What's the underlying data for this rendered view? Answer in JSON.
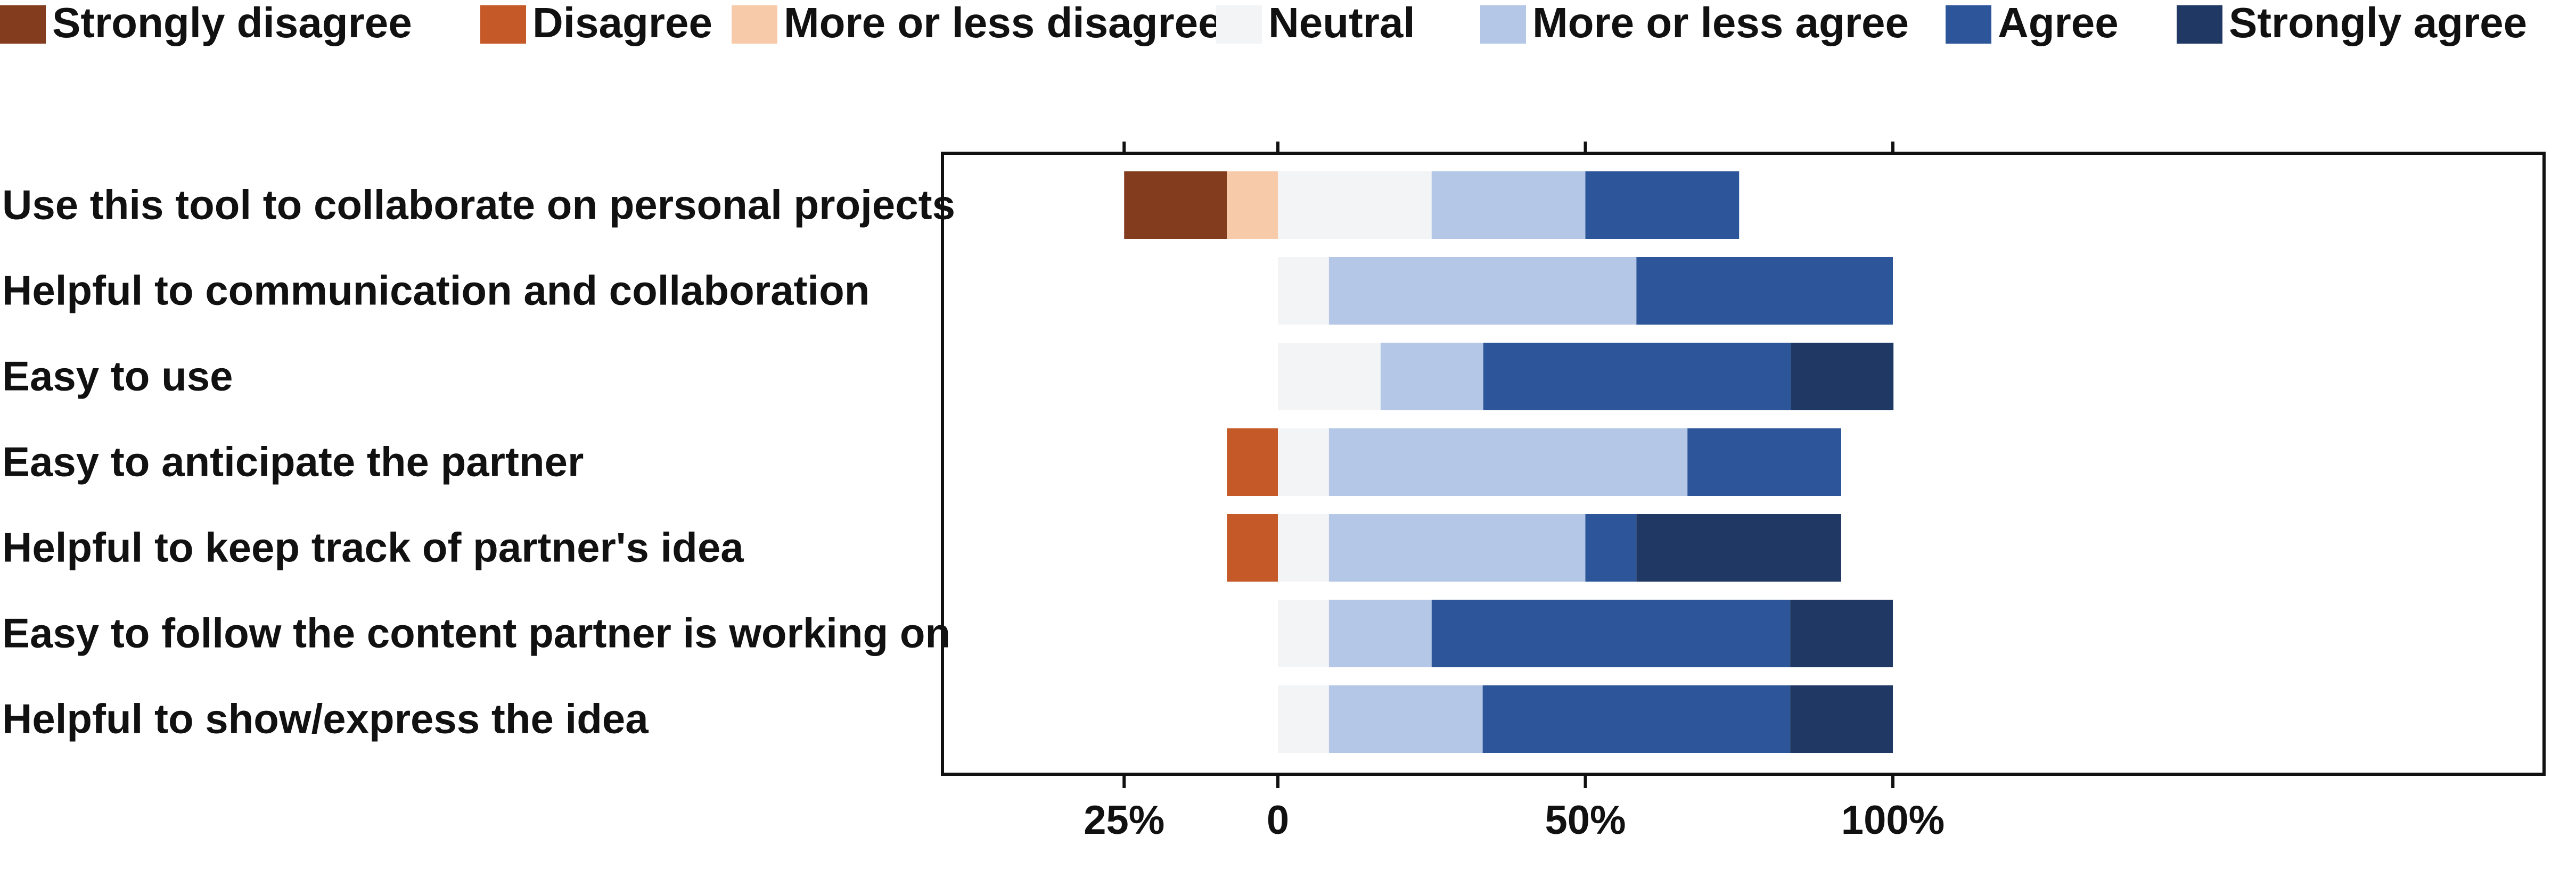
{
  "chart_data": {
    "type": "bar",
    "orientation": "horizontal",
    "stacked": true,
    "diverging": true,
    "legend_position": "top",
    "grid": false,
    "xlim": [
      -25,
      100
    ],
    "x_ticks": [
      {
        "value": -25,
        "label": "25%"
      },
      {
        "value": 0,
        "label": "0"
      },
      {
        "value": 50,
        "label": "50%"
      },
      {
        "value": 100,
        "label": "100%"
      }
    ],
    "categories": [
      "Use this tool to collaborate on personal projects",
      "Helpful to communication and collaboration",
      "Easy to use",
      "Easy to anticipate the partner",
      "Helpful to keep track of partner's idea",
      "Easy to follow the content partner is working on",
      "Helpful to show/express the idea"
    ],
    "series": [
      {
        "name": "Strongly disagree",
        "color": "#843c1e",
        "values": [
          16.7,
          0,
          0,
          0,
          0,
          0,
          0
        ]
      },
      {
        "name": "Disagree",
        "color": "#c55a28",
        "values": [
          0,
          0,
          0,
          8.3,
          8.3,
          0,
          0
        ]
      },
      {
        "name": "More or less disagree",
        "color": "#f7cba9",
        "values": [
          8.3,
          0,
          0,
          0,
          0,
          0,
          0
        ]
      },
      {
        "name": "Neutral",
        "color": "#f3f4f6",
        "values": [
          25,
          8.3,
          16.7,
          8.3,
          8.3,
          8.3,
          8.3
        ]
      },
      {
        "name": "More or less agree",
        "color": "#b4c7e7",
        "values": [
          25,
          50,
          16.7,
          58.3,
          41.7,
          16.7,
          25
        ]
      },
      {
        "name": "Agree",
        "color": "#2c5699",
        "values": [
          25,
          41.7,
          50,
          25,
          8.3,
          58.3,
          50
        ]
      },
      {
        "name": "Strongly agree",
        "color": "#203864",
        "values": [
          0,
          0,
          16.7,
          0,
          33.3,
          16.7,
          16.7
        ]
      }
    ]
  }
}
